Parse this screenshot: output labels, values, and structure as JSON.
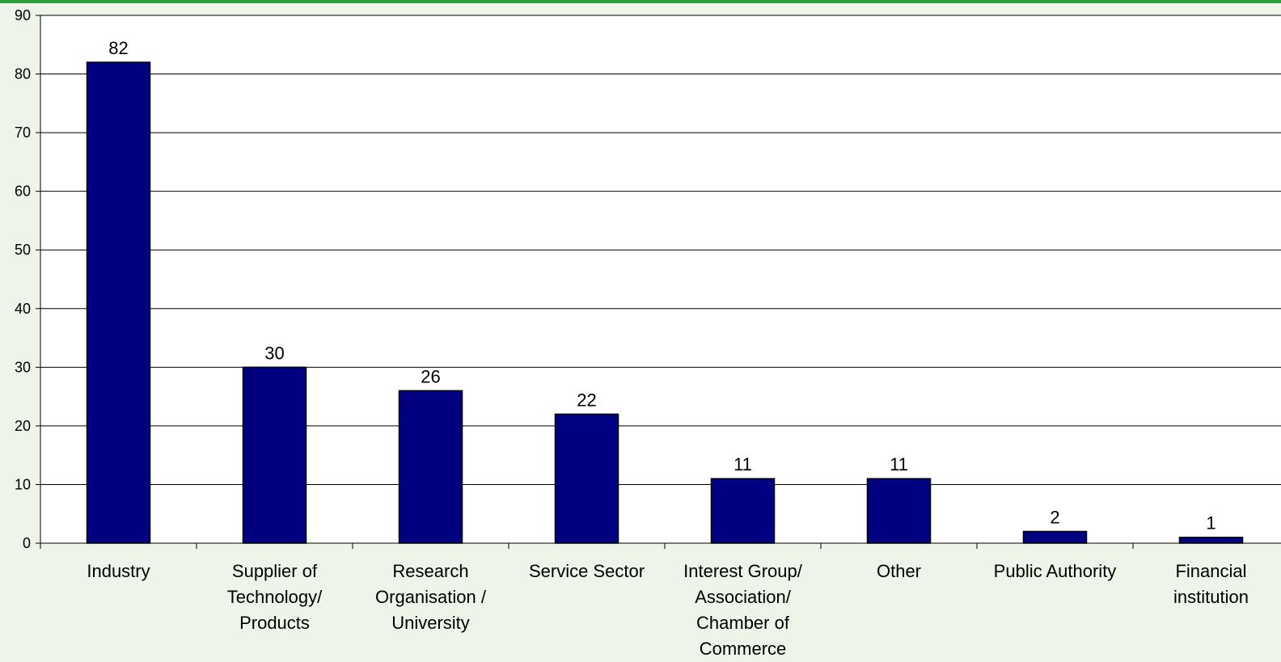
{
  "colors": {
    "top_bar": "#2e9e3a",
    "plot_bg": "#ffffff",
    "bar_fill": "#000080",
    "bar_stroke": "#000000",
    "grid": "#000000"
  },
  "chart_data": {
    "type": "bar",
    "categories": [
      [
        "Industry"
      ],
      [
        "Supplier of",
        "Technology/",
        "Products"
      ],
      [
        "Research",
        "Organisation /",
        "University"
      ],
      [
        "Service Sector"
      ],
      [
        "Interest Group/",
        "Association/",
        "Chamber of",
        "Commerce"
      ],
      [
        "Other"
      ],
      [
        "Public Authority"
      ],
      [
        "Financial",
        "institution"
      ]
    ],
    "values": [
      82,
      30,
      26,
      22,
      11,
      11,
      2,
      1
    ],
    "data_labels": [
      "82",
      "30",
      "26",
      "22",
      "11",
      "11",
      "2",
      "1"
    ],
    "ylim": [
      0,
      90
    ],
    "yticks": [
      0,
      10,
      20,
      30,
      40,
      50,
      60,
      70,
      80,
      90
    ],
    "grid": true,
    "legend": "none",
    "title": "",
    "xlabel": "",
    "ylabel": ""
  }
}
